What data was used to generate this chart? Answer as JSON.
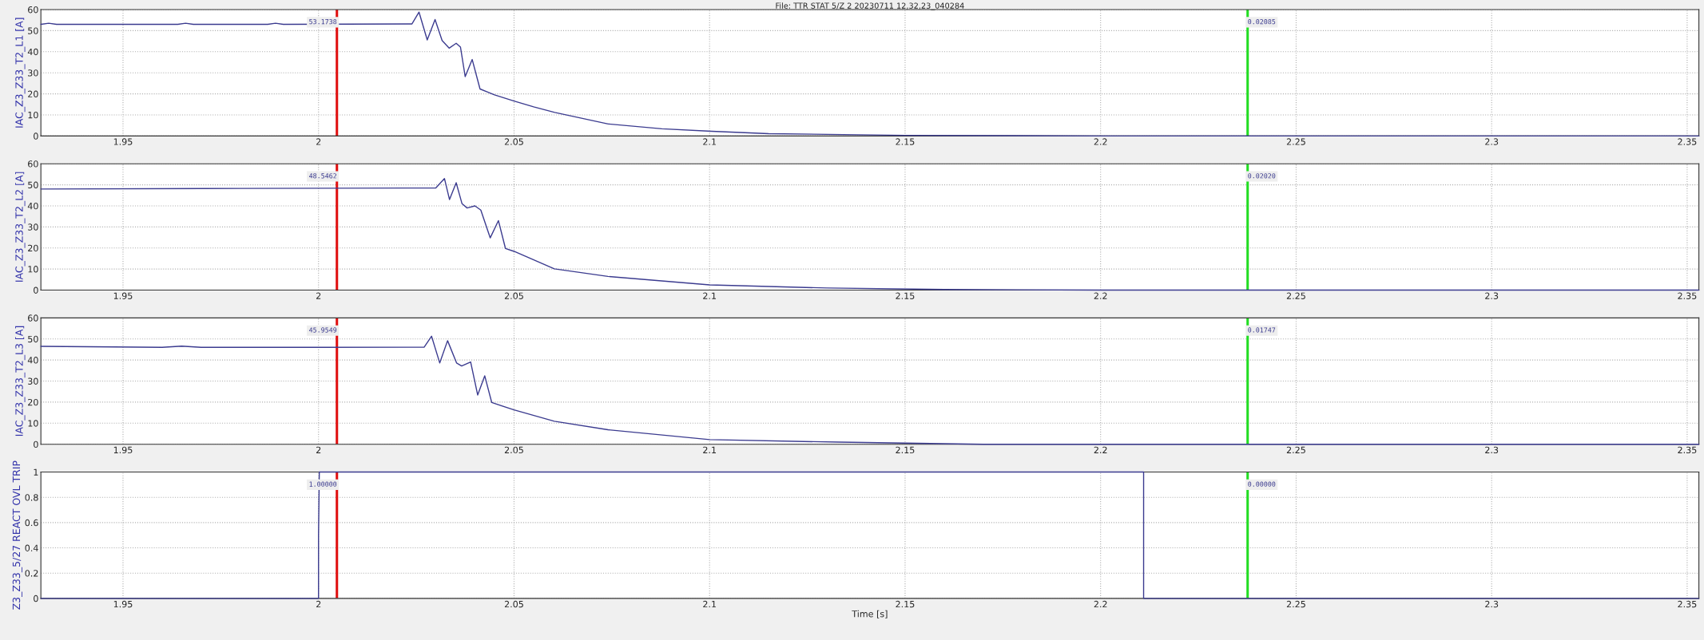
{
  "chart_data": [
    {
      "type": "line",
      "title": "File: TTR STAT 5/Z 2 20230711 12,32,23_040284",
      "ylabel": "IAC_Z3_Z33_T2_L1 [A]",
      "xlim": [
        1.929,
        2.353
      ],
      "xticks": [
        1.95,
        2,
        2.05,
        2.1,
        2.15,
        2.2,
        2.25,
        2.3,
        2.35
      ],
      "ylim": [
        0,
        60
      ],
      "yticks": [
        0,
        10,
        20,
        30,
        40,
        50,
        60
      ],
      "grid": true,
      "series": [
        {
          "color": "#3b3b8f",
          "x": [
            1.929,
            1.931,
            1.933,
            1.964,
            1.966,
            1.968,
            1.987,
            1.989,
            1.991,
            2.0239,
            2.0257,
            2.0278,
            2.0298,
            2.0316,
            2.0334,
            2.0352,
            2.0363,
            2.0375,
            2.0393,
            2.0413,
            2.043,
            2.045,
            2.05,
            2.055,
            2.0604,
            2.0741,
            2.0878,
            2.1005,
            2.1151,
            2.15,
            2.2,
            2.353
          ],
          "values": [
            53.0,
            53.5,
            53.0,
            53.0,
            53.5,
            53.0,
            53.0,
            53.5,
            53.0,
            53.2,
            58.8,
            45.6,
            55.3,
            45.3,
            41.7,
            44.0,
            42.2,
            28.2,
            36.3,
            22.3,
            21.0,
            19.5,
            16.6,
            13.8,
            11.2,
            5.7,
            3.4,
            2.2,
            1.1,
            0.3,
            0.0,
            0.0
          ]
        }
      ],
      "annotations": [
        "53.1738",
        "0.02085"
      ],
      "ref_lines": [
        {
          "axis": "x",
          "value": 2.0047,
          "color": "#e01010"
        },
        {
          "axis": "x",
          "value": 2.2376,
          "color": "#22dd22"
        }
      ]
    },
    {
      "type": "line",
      "ylabel": "IAC_Z3_Z33_T2_L2 [A]",
      "xlim": [
        1.929,
        2.353
      ],
      "xticks": [
        1.95,
        2,
        2.05,
        2.1,
        2.15,
        2.2,
        2.25,
        2.3,
        2.35
      ],
      "ylim": [
        0,
        60
      ],
      "yticks": [
        0,
        10,
        20,
        30,
        40,
        50,
        60
      ],
      "grid": true,
      "series": [
        {
          "color": "#3b3b8f",
          "x": [
            1.929,
            1.98,
            2.03,
            2.0322,
            2.0335,
            2.0352,
            2.0367,
            2.038,
            2.04,
            2.0415,
            2.0439,
            2.046,
            2.0478,
            2.05,
            2.0603,
            2.074,
            2.1,
            2.13,
            2.16,
            2.2,
            2.353
          ],
          "values": [
            48.0,
            48.3,
            48.5,
            53.0,
            43.0,
            51.0,
            41.0,
            39.0,
            40.0,
            38.0,
            24.8,
            33.0,
            19.8,
            18.4,
            10.1,
            6.5,
            2.5,
            1.0,
            0.3,
            0.0,
            0.0
          ]
        }
      ],
      "annotations": [
        "48.5462",
        "0.02020"
      ],
      "ref_lines": [
        {
          "axis": "x",
          "value": 2.0047,
          "color": "#e01010"
        },
        {
          "axis": "x",
          "value": 2.2376,
          "color": "#22dd22"
        }
      ]
    },
    {
      "type": "line",
      "ylabel": "IAC_Z3_Z33_T2_L3 [A]",
      "xlim": [
        1.929,
        2.353
      ],
      "xticks": [
        1.95,
        2,
        2.05,
        2.1,
        2.15,
        2.2,
        2.25,
        2.3,
        2.35
      ],
      "ylim": [
        0,
        60
      ],
      "yticks": [
        0,
        10,
        20,
        30,
        40,
        50,
        60
      ],
      "grid": true,
      "series": [
        {
          "color": "#3b3b8f",
          "x": [
            1.929,
            1.96,
            1.965,
            1.97,
            2.0,
            2.027,
            2.0289,
            2.031,
            2.033,
            2.0353,
            2.0366,
            2.0389,
            2.0407,
            2.0425,
            2.0443,
            2.05,
            2.0603,
            2.074,
            2.1,
            2.133,
            2.17,
            2.353
          ],
          "values": [
            46.5,
            46.0,
            46.6,
            46.0,
            46.0,
            46.1,
            51.3,
            38.6,
            49.2,
            38.6,
            37.2,
            39.1,
            23.4,
            32.5,
            19.8,
            16.3,
            10.9,
            6.9,
            2.2,
            1.0,
            0.0,
            0.0
          ]
        }
      ],
      "annotations": [
        "45.9549",
        "0.01747"
      ],
      "ref_lines": [
        {
          "axis": "x",
          "value": 2.0047,
          "color": "#e01010"
        },
        {
          "axis": "x",
          "value": 2.2376,
          "color": "#22dd22"
        }
      ]
    },
    {
      "type": "line",
      "ylabel": "Z3_Z33_5/27 REACT OVL TRIP",
      "xlabel": "Time [s]",
      "xlim": [
        1.929,
        2.353
      ],
      "xticks": [
        1.95,
        2,
        2.05,
        2.1,
        2.15,
        2.2,
        2.25,
        2.3,
        2.35
      ],
      "ylim": [
        0,
        1
      ],
      "yticks": [
        0,
        0.2,
        0.4,
        0.6,
        0.8,
        1
      ],
      "grid": true,
      "series": [
        {
          "color": "#3b3b8f",
          "x": [
            1.929,
            2.0,
            2.0,
            2.0002,
            2.211,
            2.211,
            2.353
          ],
          "values": [
            0,
            0,
            0.5,
            1,
            1,
            0,
            0
          ]
        }
      ],
      "annotations": [
        "1.00000",
        "0.00000"
      ],
      "ref_lines": [
        {
          "axis": "x",
          "value": 2.0047,
          "color": "#e01010"
        },
        {
          "axis": "x",
          "value": 2.2376,
          "color": "#22dd22"
        }
      ]
    }
  ]
}
